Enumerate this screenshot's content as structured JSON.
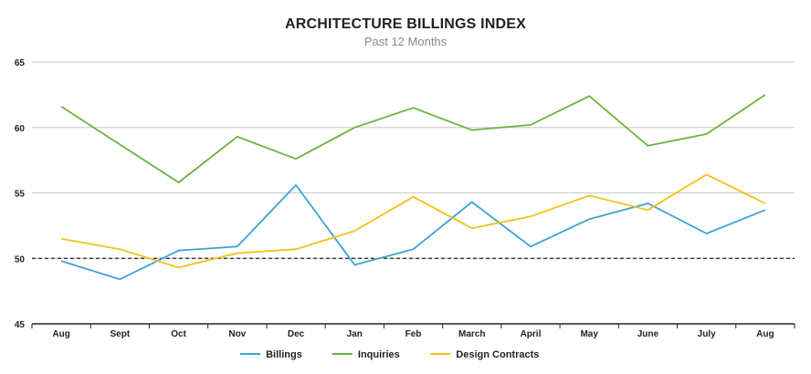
{
  "chart_data": {
    "type": "line",
    "title": "ARCHITECTURE BILLINGS INDEX",
    "subtitle": "Past 12 Months",
    "xlabel": "",
    "ylabel": "",
    "categories": [
      "Aug",
      "Sept",
      "Oct",
      "Nov",
      "Dec",
      "Jan",
      "Feb",
      "March",
      "April",
      "May",
      "June",
      "July",
      "Aug"
    ],
    "ylim": [
      45,
      65
    ],
    "yticks": [
      45,
      50,
      55,
      60,
      65
    ],
    "grid": true,
    "reference_line": 50,
    "legend_position": "bottom",
    "series": [
      {
        "name": "Billings",
        "color": "#3aa3d4",
        "values": [
          49.8,
          48.4,
          50.6,
          50.9,
          55.6,
          49.5,
          50.7,
          54.3,
          50.9,
          53.0,
          54.2,
          51.9,
          53.7
        ]
      },
      {
        "name": "Inquiries",
        "color": "#6db33f",
        "values": [
          61.6,
          58.7,
          55.8,
          59.3,
          57.6,
          60.0,
          61.5,
          59.8,
          60.2,
          62.4,
          58.6,
          59.5,
          62.5
        ]
      },
      {
        "name": "Design Contracts",
        "color": "#f5c015",
        "values": [
          51.5,
          50.7,
          49.3,
          50.4,
          50.7,
          52.1,
          54.7,
          52.3,
          53.2,
          54.8,
          53.7,
          56.4,
          54.2
        ]
      }
    ]
  }
}
